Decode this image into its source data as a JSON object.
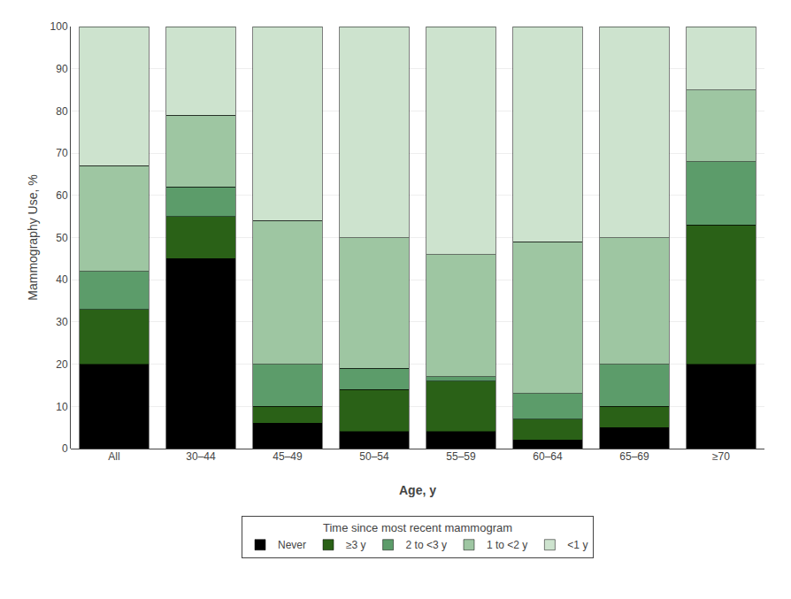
{
  "chart_data": {
    "type": "bar",
    "stacked": true,
    "categories": [
      "All",
      "30–44",
      "45–49",
      "50–54",
      "55–59",
      "60–64",
      "65–69",
      "≥70"
    ],
    "series": [
      {
        "name": "Never",
        "color": "#000000",
        "values": [
          20,
          45,
          6,
          4,
          4,
          2,
          5,
          20
        ]
      },
      {
        "name": "≥3 y",
        "color": "#2a6117",
        "values": [
          13,
          10,
          4,
          10,
          12,
          5,
          5,
          33
        ]
      },
      {
        "name": "2 to <3 y",
        "color": "#5c9c6a",
        "values": [
          9,
          7,
          10,
          5,
          1,
          6,
          10,
          15
        ]
      },
      {
        "name": "1 to <2 y",
        "color": "#9ec6a2",
        "values": [
          25,
          17,
          34,
          31,
          29,
          36,
          30,
          17
        ]
      },
      {
        "name": "<1 y",
        "color": "#cde3ce",
        "values": [
          33,
          21,
          46,
          50,
          54,
          51,
          50,
          15
        ]
      }
    ],
    "xlabel": "Age, y",
    "ylabel": "Mammography Use, %",
    "ylim": [
      0,
      100
    ],
    "yticks": [
      0,
      10,
      20,
      30,
      40,
      50,
      60,
      70,
      80,
      90,
      100
    ],
    "grid": true,
    "legend": "bottom",
    "legend_title": "Time since most recent mammogram"
  }
}
